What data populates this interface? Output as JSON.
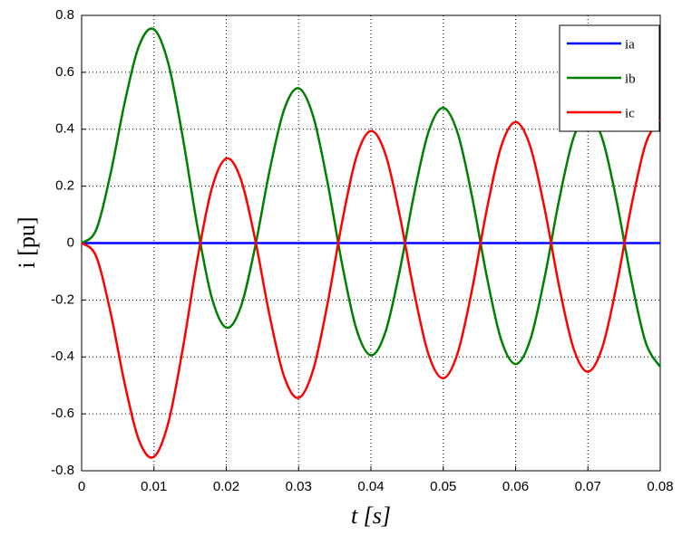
{
  "chart_data": {
    "type": "line",
    "xlabel": "t  [s]",
    "ylabel": "i  [pu]",
    "x": [
      0,
      0.002,
      0.004,
      0.006,
      0.008,
      0.01,
      0.012,
      0.014,
      0.016,
      0.018,
      0.02,
      0.022,
      0.024,
      0.026,
      0.028,
      0.03,
      0.032,
      0.034,
      0.036,
      0.038,
      0.04,
      0.042,
      0.044,
      0.046,
      0.048,
      0.05,
      0.052,
      0.054,
      0.056,
      0.058,
      0.06,
      0.062,
      0.064,
      0.066,
      0.068,
      0.07,
      0.072,
      0.074,
      0.076,
      0.078,
      0.08
    ],
    "series": [
      {
        "name": "ia",
        "color": "#0000ff",
        "values": [
          0,
          0,
          0,
          0,
          0,
          0,
          0,
          0,
          0,
          0,
          0,
          0,
          0,
          0,
          0,
          0,
          0,
          0,
          0,
          0,
          0,
          0,
          0,
          0,
          0,
          0,
          0,
          0,
          0,
          0,
          0,
          0,
          0,
          0,
          0,
          0,
          0,
          0,
          0,
          0,
          0
        ]
      },
      {
        "name": "ib",
        "color": "#007f00",
        "values": [
          0,
          0.046,
          0.244,
          0.499,
          0.697,
          0.751,
          0.63,
          0.369,
          0.059,
          -0.192,
          -0.297,
          -0.225,
          -0.012,
          0.256,
          0.469,
          0.544,
          0.447,
          0.213,
          -0.072,
          -0.303,
          -0.394,
          -0.313,
          -0.095,
          0.176,
          0.394,
          0.475,
          0.386,
          0.161,
          -0.115,
          -0.339,
          -0.425,
          -0.342,
          -0.123,
          0.149,
          0.369,
          0.452,
          0.366,
          0.144,
          -0.129,
          -0.35,
          -0.435
        ]
      },
      {
        "name": "ic",
        "color": "#ff0000",
        "values": [
          0,
          -0.046,
          -0.244,
          -0.499,
          -0.697,
          -0.751,
          -0.63,
          -0.369,
          -0.059,
          0.192,
          0.297,
          0.225,
          0.012,
          -0.256,
          -0.469,
          -0.544,
          -0.447,
          -0.213,
          0.072,
          0.303,
          0.394,
          0.313,
          0.095,
          -0.176,
          -0.394,
          -0.475,
          -0.386,
          -0.161,
          0.115,
          0.339,
          0.425,
          0.342,
          0.123,
          -0.149,
          -0.369,
          -0.452,
          -0.366,
          -0.144,
          0.129,
          0.35,
          0.435
        ]
      }
    ],
    "xlim": [
      0,
      0.08
    ],
    "xticks": [
      0,
      0.01,
      0.02,
      0.03,
      0.04,
      0.05,
      0.06,
      0.07,
      0.08
    ],
    "ylim": [
      -0.8,
      0.8
    ],
    "yticks": [
      -0.8,
      -0.6,
      -0.4,
      -0.2,
      0,
      0.2,
      0.4,
      0.6,
      0.8
    ],
    "grid": true,
    "legend": "upper right"
  }
}
